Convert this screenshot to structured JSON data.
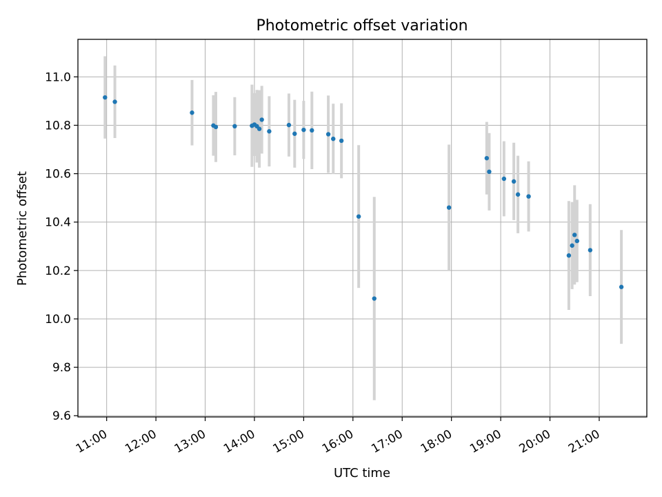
{
  "chart_data": {
    "type": "scatter",
    "title": "Photometric offset variation",
    "xlabel": "UTC time",
    "ylabel": "Photometric offset",
    "grid": true,
    "x_ticks": [
      "11:00",
      "12:00",
      "13:00",
      "14:00",
      "15:00",
      "16:00",
      "17:00",
      "18:00",
      "19:00",
      "20:00",
      "21:00"
    ],
    "y_ticks": [
      "9.6",
      "9.8",
      "10.0",
      "10.2",
      "10.4",
      "10.6",
      "10.8",
      "11.0"
    ],
    "x_tick_hours": [
      11,
      12,
      13,
      14,
      15,
      16,
      17,
      18,
      19,
      20,
      21
    ],
    "y_tick_values": [
      9.6,
      9.8,
      10.0,
      10.2,
      10.4,
      10.6,
      10.8,
      11.0
    ],
    "xlim": [
      "10:25",
      "21:58"
    ],
    "ylim": [
      9.595,
      11.155
    ],
    "colors": {
      "point": "#1f77b4",
      "errorbar": "#d3d3d3",
      "grid": "#b0b0b0"
    },
    "series": [
      {
        "x": [
          "10:58",
          "11:10",
          "12:44",
          "13:10",
          "13:13",
          "13:36",
          "13:57",
          "14:00",
          "14:03",
          "14:06",
          "14:09",
          "14:18",
          "14:42",
          "14:49",
          "15:00",
          "15:10",
          "15:30",
          "15:36",
          "15:46",
          "16:07",
          "16:26",
          "17:57",
          "18:43",
          "18:46",
          "19:04",
          "19:16",
          "19:21",
          "19:34",
          "20:23",
          "20:27",
          "20:30",
          "20:33",
          "20:49",
          "21:27"
        ],
        "y": [
          10.915,
          10.897,
          10.852,
          10.799,
          10.793,
          10.796,
          10.798,
          10.803,
          10.796,
          10.785,
          10.823,
          10.775,
          10.801,
          10.765,
          10.781,
          10.779,
          10.763,
          10.744,
          10.736,
          10.423,
          10.084,
          10.46,
          10.664,
          10.608,
          10.579,
          10.568,
          10.514,
          10.506,
          10.262,
          10.303,
          10.347,
          10.322,
          10.284,
          10.132
        ],
        "yerr": [
          0.17,
          0.15,
          0.135,
          0.125,
          0.145,
          0.12,
          0.17,
          0.13,
          0.15,
          0.16,
          0.14,
          0.145,
          0.13,
          0.14,
          0.12,
          0.16,
          0.16,
          0.145,
          0.155,
          0.295,
          0.42,
          0.26,
          0.15,
          0.16,
          0.155,
          0.16,
          0.16,
          0.145,
          0.225,
          0.18,
          0.205,
          0.17,
          0.19,
          0.235
        ]
      }
    ]
  }
}
